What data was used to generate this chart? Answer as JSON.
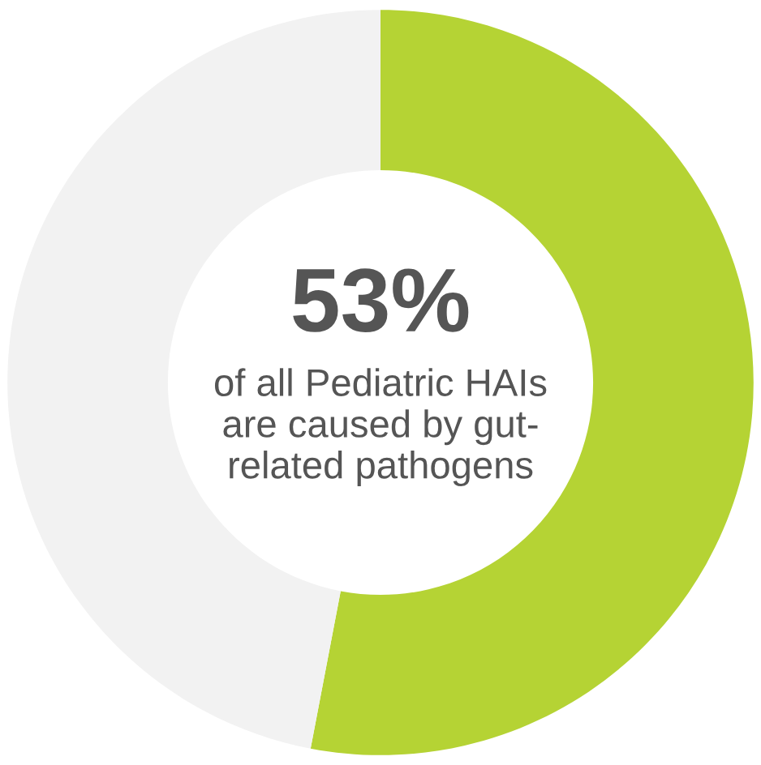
{
  "chart_data": {
    "type": "donut",
    "categories": [
      null,
      null
    ],
    "values": [
      53,
      47
    ],
    "colors": [
      "#b5d334",
      "#f2f2f2"
    ],
    "annotations": [
      "53%",
      "of all Pediatric HAIs\nare caused by gut-\nrelated pathogens"
    ]
  }
}
